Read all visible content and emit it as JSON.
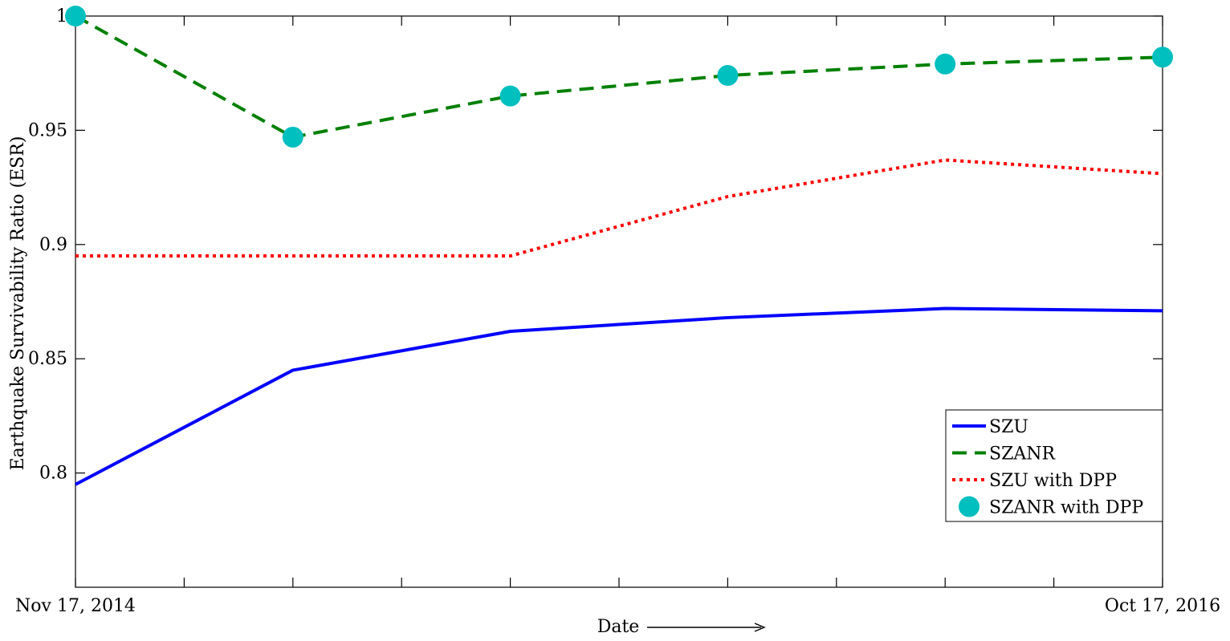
{
  "chart_data": {
    "type": "line",
    "title": "",
    "xlabel": "Date",
    "ylabel": "Earthquake Survivability Ratio (ESR)",
    "x_tick_labels": [
      "Nov 17, 2014",
      "Oct 17, 2016"
    ],
    "x_points": [
      0,
      1,
      2,
      3,
      4,
      5
    ],
    "xlim": [
      0,
      5
    ],
    "ylim": [
      0.75,
      1.0
    ],
    "y_ticks": [
      0.8,
      0.85,
      0.9,
      0.95,
      1
    ],
    "y_tick_labels": [
      "0.8",
      "0.85",
      "0.9",
      "0.95",
      "1"
    ],
    "grid": false,
    "legend_position": "bottom-right",
    "series": [
      {
        "name": "SZU",
        "values": [
          0.795,
          0.845,
          0.862,
          0.868,
          0.872,
          0.871
        ],
        "color": "#0000ff",
        "style": "solid"
      },
      {
        "name": "SZANR",
        "values": [
          1.0,
          0.947,
          0.965,
          0.974,
          0.979,
          0.982
        ],
        "color": "#008000",
        "style": "dashed"
      },
      {
        "name": "SZU with DPP",
        "values": [
          0.895,
          0.895,
          0.895,
          0.921,
          0.937,
          0.931
        ],
        "color": "#ff0000",
        "style": "dotted"
      },
      {
        "name": "SZANR with DPP",
        "values": [
          1.0,
          0.947,
          0.965,
          0.974,
          0.979,
          0.982
        ],
        "color": "#00bfbf",
        "style": "markers"
      }
    ]
  }
}
